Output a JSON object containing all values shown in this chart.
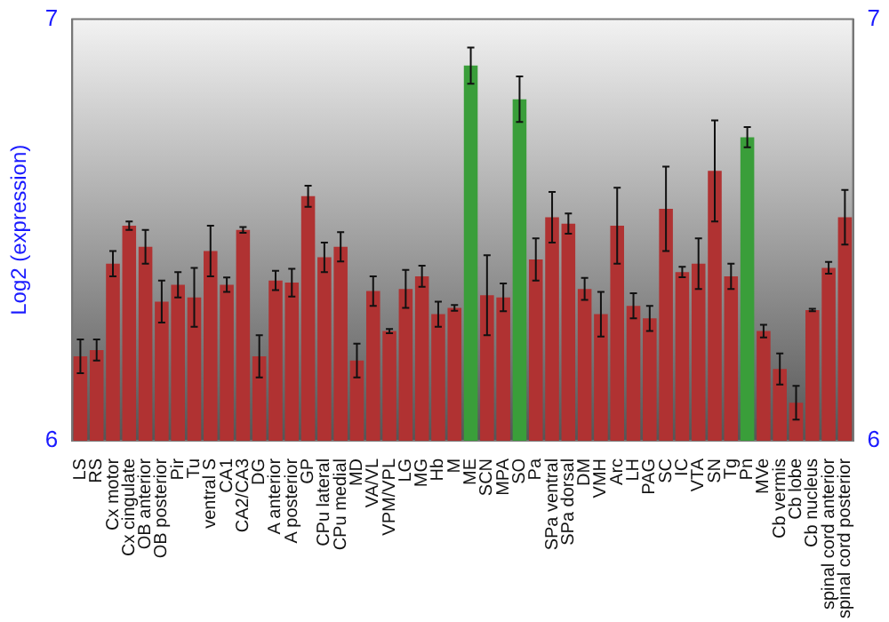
{
  "chart_data": {
    "type": "bar",
    "ylabel": "Log2 (expression)",
    "categories": [
      "LS",
      "RS",
      "Cx motor",
      "Cx cingulate",
      "OB anterior",
      "OB posterior",
      "Pir",
      "Tu",
      "ventral S",
      "CA1",
      "CA2/CA3",
      "DG",
      "A anterior",
      "A posterior",
      "GP",
      "CPu lateral",
      "CPu medial",
      "MD",
      "VA/VL",
      "VPM/VPL",
      "LG",
      "MG",
      "Hb",
      "M",
      "ME",
      "SCN",
      "MPA",
      "SO",
      "Pa",
      "SPa ventral",
      "SPa dorsal",
      "DM",
      "VMH",
      "Arc",
      "LH",
      "PAG",
      "SC",
      "IC",
      "VTA",
      "SN",
      "Tg",
      "Pn",
      "MVe",
      "Cb vermis",
      "Cb lobe",
      "Cb nucleus",
      "spinal cord anterior",
      "spinal cord posterior"
    ],
    "values": [
      6.2,
      6.215,
      6.42,
      6.51,
      6.46,
      6.33,
      6.37,
      6.34,
      6.45,
      6.37,
      6.5,
      6.2,
      6.38,
      6.375,
      6.58,
      6.435,
      6.46,
      6.19,
      6.355,
      6.26,
      6.36,
      6.39,
      6.3,
      6.315,
      6.89,
      6.345,
      6.34,
      6.81,
      6.43,
      6.53,
      6.515,
      6.36,
      6.3,
      6.51,
      6.32,
      6.29,
      6.55,
      6.4,
      6.42,
      6.64,
      6.39,
      6.72,
      6.26,
      6.17,
      6.09,
      6.31,
      6.41,
      6.53
    ],
    "errors": [
      0.04,
      0.025,
      0.03,
      0.01,
      0.04,
      0.05,
      0.03,
      0.07,
      0.06,
      0.017,
      0.007,
      0.05,
      0.023,
      0.033,
      0.025,
      0.035,
      0.035,
      0.04,
      0.035,
      0.005,
      0.045,
      0.025,
      0.03,
      0.007,
      0.043,
      0.095,
      0.033,
      0.054,
      0.05,
      0.06,
      0.024,
      0.026,
      0.053,
      0.09,
      0.03,
      0.03,
      0.1,
      0.0125,
      0.06,
      0.12,
      0.03,
      0.024,
      0.015,
      0.037,
      0.04,
      0.003,
      0.014,
      0.065
    ],
    "colors": [
      "#b03232",
      "#b03232",
      "#b03232",
      "#b03232",
      "#b03232",
      "#b03232",
      "#b03232",
      "#b03232",
      "#b03232",
      "#b03232",
      "#b03232",
      "#b03232",
      "#b03232",
      "#b03232",
      "#b03232",
      "#b03232",
      "#b03232",
      "#b03232",
      "#b03232",
      "#b03232",
      "#b03232",
      "#b03232",
      "#b03232",
      "#b03232",
      "#3a9e3a",
      "#b03232",
      "#b03232",
      "#3a9e3a",
      "#b03232",
      "#b03232",
      "#b03232",
      "#b03232",
      "#b03232",
      "#b03232",
      "#b03232",
      "#b03232",
      "#b03232",
      "#b03232",
      "#b03232",
      "#b03232",
      "#b03232",
      "#3a9e3a",
      "#b03232",
      "#b03232",
      "#b03232",
      "#b03232",
      "#b03232",
      "#b03232"
    ],
    "ylim": [
      6,
      7
    ],
    "yticks": [
      6,
      7
    ],
    "y2lim": [
      6,
      7
    ],
    "y2ticks": [
      6,
      7
    ],
    "grid": false,
    "legend": false
  }
}
